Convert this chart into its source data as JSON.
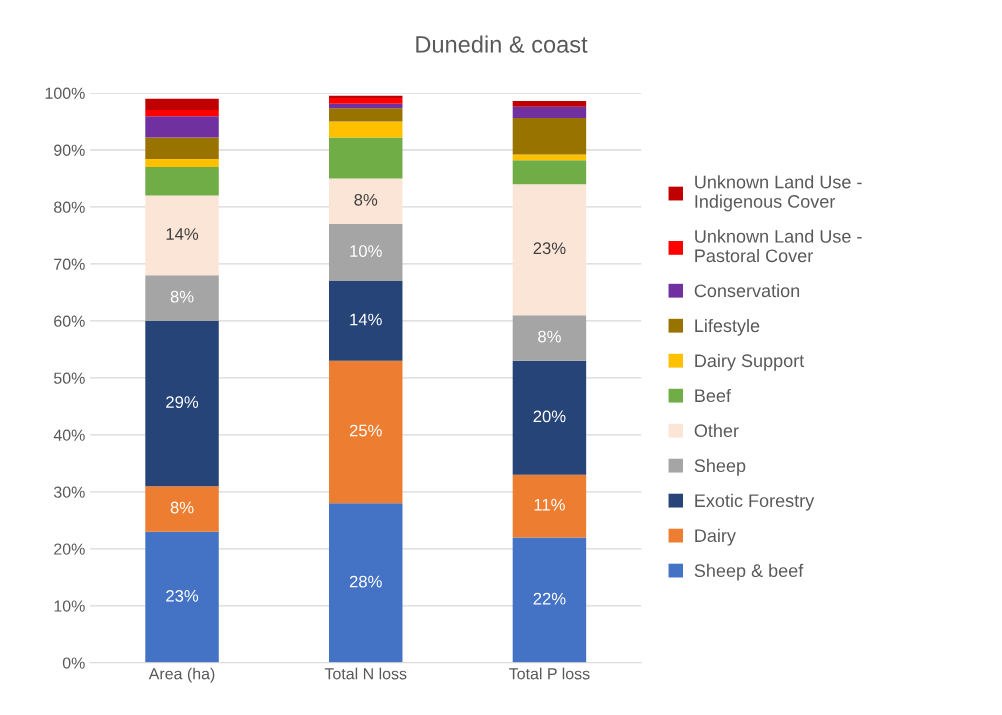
{
  "chart_data": {
    "type": "bar",
    "stacked": true,
    "title": "Dunedin & coast",
    "categories": [
      "Area (ha)",
      "Total N loss",
      "Total P loss"
    ],
    "series": [
      {
        "name": "Sheep & beef",
        "color": "#4472c4",
        "values": [
          23,
          28,
          22
        ],
        "value_labels": [
          "23%",
          "28%",
          "22%"
        ]
      },
      {
        "name": "Dairy",
        "color": "#ed7d31",
        "values": [
          8,
          25,
          11
        ],
        "value_labels": [
          "8%",
          "25%",
          "11%"
        ]
      },
      {
        "name": "Exotic Forestry",
        "color": "#264478",
        "values": [
          29,
          14,
          20
        ],
        "value_labels": [
          "29%",
          "14%",
          "20%"
        ]
      },
      {
        "name": "Sheep",
        "color": "#a5a5a5",
        "values": [
          8,
          10,
          8
        ],
        "value_labels": [
          "8%",
          "10%",
          "8%"
        ]
      },
      {
        "name": "Other",
        "color": "#fbe5d6",
        "values": [
          14,
          8,
          23
        ],
        "value_labels": [
          "14%",
          "8%",
          "23%"
        ]
      },
      {
        "name": "Beef",
        "color": "#70ad47",
        "values": [
          5,
          7.2,
          4.2
        ]
      },
      {
        "name": "Dairy Support",
        "color": "#ffc000",
        "values": [
          1.4,
          2.8,
          1.0
        ]
      },
      {
        "name": "Lifestyle",
        "color": "#997300",
        "values": [
          3.8,
          2.3,
          6.4
        ]
      },
      {
        "name": "Conservation",
        "color": "#7030a0",
        "values": [
          3.7,
          0.8,
          2.0
        ]
      },
      {
        "name": "Unknown Land Use - Pastoral Cover",
        "color": "#ff0000",
        "values": [
          1.1,
          1.0,
          0
        ]
      },
      {
        "name": "Unknown Land Use - Indigenous Cover",
        "color": "#c00000",
        "values": [
          2.0,
          0.4,
          1.0
        ]
      }
    ],
    "ylim": [
      0,
      100
    ],
    "yticks": [
      {
        "value": 0,
        "label": "0%"
      },
      {
        "value": 10,
        "label": "10%"
      },
      {
        "value": 20,
        "label": "20%"
      },
      {
        "value": 30,
        "label": "30%"
      },
      {
        "value": 40,
        "label": "40%"
      },
      {
        "value": 50,
        "label": "50%"
      },
      {
        "value": 60,
        "label": "60%"
      },
      {
        "value": 70,
        "label": "70%"
      },
      {
        "value": 80,
        "label": "80%"
      },
      {
        "value": 90,
        "label": "90%"
      },
      {
        "value": 100,
        "label": "100%"
      }
    ],
    "grid": "y",
    "legend": "right"
  }
}
